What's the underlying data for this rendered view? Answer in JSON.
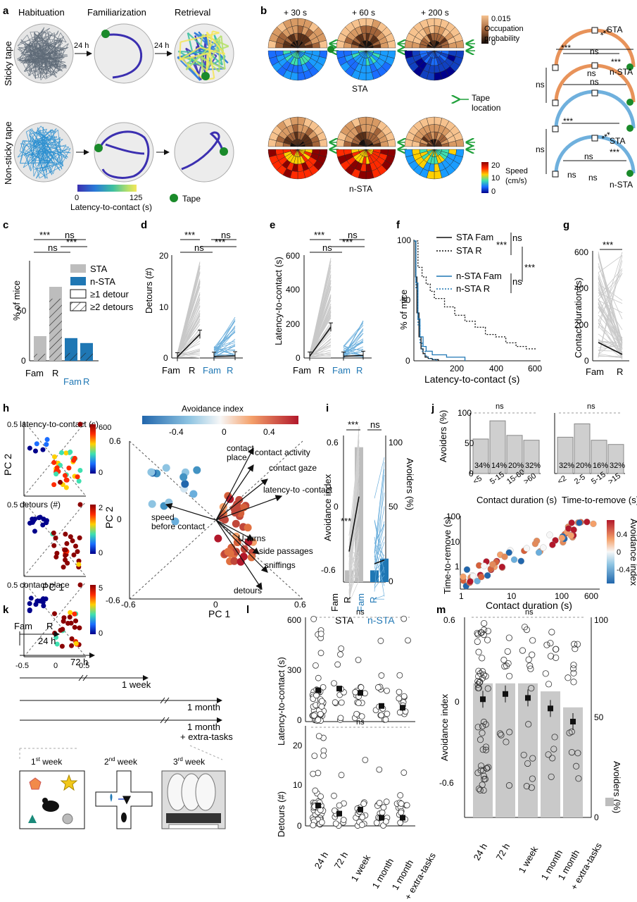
{
  "colors": {
    "sta_gray": "#bdbdbd",
    "nsta_blue": "#1f77b4",
    "path_purple": "#3b2fb0",
    "tape_green": "#1a8a2a",
    "arrow_green": "#1fa03a"
  },
  "panel_letters": {
    "a": "a",
    "b": "b",
    "c": "c",
    "d": "d",
    "e": "e",
    "f": "f",
    "g": "g",
    "h": "h",
    "i": "i",
    "j": "j",
    "k": "k",
    "l": "l",
    "m": "m"
  },
  "a": {
    "cols": [
      "Habituation",
      "Familiarization",
      "Retrieval"
    ],
    "rows": [
      "Sticky tape",
      "Non-sticky tape"
    ],
    "arrow_label": "24 h",
    "colorbar": {
      "min": "0",
      "max": "125",
      "label": "Latency-to-contact (s)"
    },
    "tape_legend": "Tape"
  },
  "b": {
    "times": [
      "+ 30 s",
      "+ 60 s",
      "+ 200 s"
    ],
    "sta": "STA",
    "nsta": "n-STA",
    "occ_bar": {
      "max": "0.015",
      "min": "0",
      "label1": "Occupation",
      "label2": "probability"
    },
    "tape_loc": {
      "l1": "Tape",
      "l2": "location"
    },
    "speed_bar": {
      "max": "20",
      "mid": "10",
      "min": "0",
      "label1": "Speed",
      "label2": "(cm/s)"
    },
    "sig": {
      "ns": "ns",
      "s3": "***"
    }
  },
  "c": {
    "ylabel": "% of mice",
    "yticks": [
      "0",
      "50"
    ],
    "xticks": [
      "Fam",
      "R",
      "Fam",
      "R"
    ],
    "legend": [
      "STA",
      "n-STA",
      "≥1 detour",
      "≥2 detours"
    ],
    "sig": [
      "***",
      "ns",
      "ns",
      "***"
    ],
    "chart_data": {
      "type": "bar",
      "categories": [
        "STA Fam",
        "STA R",
        "n-STA Fam",
        "n-STA R"
      ],
      "values_ge1": [
        25,
        75,
        23,
        18
      ],
      "values_ge2": [
        7,
        63,
        8,
        8
      ],
      "ylim": [
        0,
        100
      ]
    }
  },
  "d": {
    "ylabel": "Detours (#)",
    "yticks": [
      "0",
      "10",
      "20"
    ],
    "xticks": [
      "Fam",
      "R",
      "Fam",
      "R"
    ],
    "sig": [
      "***",
      "ns",
      "ns",
      "***"
    ],
    "chart_data": {
      "type": "line",
      "series": [
        {
          "x": [
            "Fam",
            "R"
          ],
          "mean": [
            0.2,
            4.6
          ]
        },
        {
          "x": [
            "Fam",
            "R"
          ],
          "mean": [
            0.3,
            0.4
          ]
        }
      ],
      "ylim": [
        0,
        20
      ]
    }
  },
  "e": {
    "ylabel": "Latency-to-contact (s)",
    "yticks": [
      "0",
      "200",
      "400",
      "600"
    ],
    "xticks": [
      "Fam",
      "R",
      "Fam",
      "R"
    ],
    "sig": [
      "***",
      "ns",
      "ns",
      "***"
    ],
    "chart_data": {
      "type": "line",
      "series": [
        {
          "x": [
            "Fam",
            "R"
          ],
          "mean": [
            10,
            180
          ]
        },
        {
          "x": [
            "Fam",
            "R"
          ],
          "mean": [
            10,
            15
          ]
        }
      ],
      "ylim": [
        0,
        600
      ]
    }
  },
  "f": {
    "ylabel": "% of mice",
    "xlabel": "Latency-to-contact (s)",
    "yticks": [
      "0",
      "50",
      "100"
    ],
    "xticks": [
      "200",
      "400",
      "600"
    ],
    "legend": [
      "STA Fam",
      "STA R",
      "n-STA Fam",
      "n-STA R"
    ],
    "sig": [
      "***",
      "ns",
      "ns",
      "***"
    ],
    "chart_data": {
      "type": "line",
      "xlim": [
        0,
        620
      ],
      "ylim": [
        0,
        100
      ],
      "series": [
        {
          "name": "STA Fam",
          "x": [
            0,
            8,
            15,
            25,
            35,
            45,
            55,
            70,
            90,
            120
          ],
          "y": [
            100,
            70,
            40,
            20,
            10,
            6,
            3,
            2,
            1,
            0
          ]
        },
        {
          "name": "STA R",
          "x": [
            0,
            20,
            40,
            60,
            80,
            100,
            150,
            200,
            250,
            300,
            350,
            400,
            450,
            500,
            550,
            600
          ],
          "y": [
            100,
            78,
            70,
            64,
            58,
            52,
            45,
            38,
            33,
            28,
            22,
            20,
            15,
            12,
            10,
            10
          ]
        },
        {
          "name": "n-STA Fam",
          "x": [
            0,
            10,
            20,
            30,
            45,
            60,
            90,
            130,
            160,
            220,
            250
          ],
          "y": [
            100,
            65,
            35,
            20,
            12,
            8,
            5,
            5,
            3,
            3,
            0
          ]
        },
        {
          "name": "n-STA R",
          "x": [
            0,
            10,
            20,
            30,
            40,
            55,
            70,
            90,
            110
          ],
          "y": [
            100,
            60,
            30,
            15,
            8,
            4,
            2,
            1,
            0
          ]
        }
      ]
    }
  },
  "g": {
    "ylabel": "Contact duration (s)",
    "yticks": [
      "0",
      "200",
      "400",
      "600"
    ],
    "xticks": [
      "Fam",
      "R"
    ],
    "sig": "***",
    "chart_data": {
      "type": "line",
      "x": [
        "Fam",
        "R"
      ],
      "mean": [
        100,
        35
      ],
      "ylim": [
        0,
        600
      ]
    }
  },
  "h": {
    "small": [
      {
        "title": "latency-to-contact (s)",
        "cb_max": "600",
        "cb_min": "0"
      },
      {
        "title": "detours (#)",
        "cb_max": "2",
        "cb_min": "0"
      },
      {
        "title": "contact place",
        "cb_max": "5",
        "cb_min": "0"
      }
    ],
    "small_y": [
      "0.5",
      "0",
      "0.5"
    ],
    "small_x": [
      "-0.5",
      "0",
      "0.5"
    ],
    "pc1": "PC 1",
    "pc2": "PC 2",
    "cb_title": "Avoidance index",
    "cb_ticks": [
      "-0.4",
      "0",
      "0.4"
    ],
    "big_y": [
      "0.6",
      "0",
      "-0.6"
    ],
    "big_x": [
      "-0.6",
      "0",
      "0.6"
    ],
    "vectors": [
      "contact place",
      "contact activity",
      "contact gaze",
      "latency-to -contact",
      "speed before contact",
      "U-turns",
      "side passages",
      "sniffings",
      "detours"
    ]
  },
  "i": {
    "ylabel": "Avoidance index",
    "ylabel2": "Avoiders (%)",
    "yticks": [
      "0.6",
      "0",
      "-0.6"
    ],
    "yticks2": [
      "100",
      "50",
      "0"
    ],
    "xticks": [
      "Fam",
      "R",
      "Fam",
      "R"
    ],
    "groups": [
      "STA",
      "n-STA"
    ],
    "sig": [
      "***",
      "ns"
    ],
    "inner_sig": "***",
    "chart_data": {
      "type": "bar",
      "categories": [
        "STA Fam",
        "STA R",
        "n-STA Fam",
        "n-STA R"
      ],
      "avoiders_pct": [
        8,
        92,
        8,
        16
      ],
      "mean_index": [
        -0.35,
        0.1,
        -0.45,
        -0.42
      ],
      "ylim": [
        -0.8,
        0.8
      ]
    }
  },
  "j": {
    "ylabel_top": "Avoiders (%)",
    "yticks_top": [
      "0",
      "50",
      "100"
    ],
    "ns": "ns",
    "bars1": {
      "xlabel": "Contact duration (s)",
      "cats": [
        "<5",
        "5-15",
        "15-60",
        ">60"
      ],
      "labels": [
        "34%",
        "14%",
        "20%",
        "32%"
      ]
    },
    "bars2": {
      "xlabel": "Time-to-remove (s)",
      "cats": [
        "<2",
        "2-5",
        "5-15",
        ">15"
      ],
      "labels": [
        "32%",
        "20%",
        "16%",
        "32%"
      ]
    },
    "scatter": {
      "ylabel": "Time-to-remove (s)",
      "xlabel": "Contact duration (s)",
      "yticks": [
        "1",
        "10",
        "100"
      ],
      "xticks": [
        "1",
        "10",
        "100",
        "600"
      ],
      "cb_title": "Avoidance index",
      "cb_ticks": [
        "0.4",
        "0",
        "-0.4"
      ]
    },
    "chart_data": {
      "type": "bar",
      "series": [
        {
          "name": "Contact duration (s)",
          "categories": [
            "<5",
            "5-15",
            "15-60",
            ">60"
          ],
          "values": [
            57,
            87,
            63,
            55
          ]
        },
        {
          "name": "Time-to-remove (s)",
          "categories": [
            "<2",
            "2-5",
            "5-15",
            ">15"
          ],
          "values": [
            60,
            82,
            55,
            48
          ]
        }
      ],
      "ylim": [
        0,
        100
      ]
    }
  },
  "k": {
    "fam": "Fam",
    "r": "R",
    "delays": [
      "24 h",
      "72 h",
      "1 week",
      "1 month",
      "1 month",
      "+ extra-tasks"
    ],
    "weeks": [
      "1",
      "st",
      " week",
      "2",
      "nd",
      " week",
      "3",
      "rd",
      " week"
    ]
  },
  "l": {
    "ylabel1": "Latency-to-contact (s)",
    "yticks1": [
      "600",
      "300",
      "0"
    ],
    "ylabel2": "Detours (#)",
    "yticks2": [
      "20",
      "10",
      "0"
    ],
    "ns": "ns",
    "xticks": [
      "24 h",
      "72 h",
      "1 week",
      "1 month",
      "1 month",
      "+ extra-tasks"
    ],
    "chart_data": {
      "type": "scatter",
      "categories": [
        "24 h",
        "72 h",
        "1 week",
        "1 month",
        "1 month + extra-tasks"
      ],
      "latency_mean": [
        180,
        190,
        165,
        90,
        80
      ],
      "detours_mean": [
        5,
        3,
        4,
        2,
        2
      ]
    }
  },
  "m": {
    "ylabel": "Avoidance index",
    "ylabel2": "Avoiders (%)",
    "yticks": [
      "0.6",
      "0",
      "-0.6"
    ],
    "yticks2": [
      "100",
      "50",
      "0"
    ],
    "ns": "ns",
    "xticks": [
      "24 h",
      "72 h",
      "1 week",
      "1 month",
      "1 month",
      "+ extra-tasks"
    ],
    "chart_data": {
      "type": "bar",
      "categories": [
        "24 h",
        "72 h",
        "1 week",
        "1 month",
        "1 month + extra-tasks"
      ],
      "avoiders_pct": [
        67,
        67,
        67,
        63,
        55
      ],
      "mean_index": [
        0.02,
        0.06,
        0.03,
        -0.05,
        -0.15
      ],
      "ylim": [
        -0.8,
        0.6
      ]
    }
  }
}
